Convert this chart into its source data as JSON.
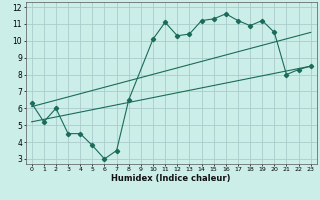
{
  "background_color": "#cceee8",
  "grid_color": "#aacccc",
  "line_color": "#1a6b5a",
  "xlabel": "Humidex (Indice chaleur)",
  "xlim": [
    -0.5,
    23.5
  ],
  "ylim": [
    2.7,
    12.3
  ],
  "xticks": [
    0,
    1,
    2,
    3,
    4,
    5,
    6,
    7,
    8,
    9,
    10,
    11,
    12,
    13,
    14,
    15,
    16,
    17,
    18,
    19,
    20,
    21,
    22,
    23
  ],
  "yticks": [
    3,
    4,
    5,
    6,
    7,
    8,
    9,
    10,
    11,
    12
  ],
  "series1_x": [
    0,
    1,
    2,
    3,
    4,
    5,
    6,
    7,
    8,
    10,
    11,
    12,
    13,
    14,
    15,
    16,
    17,
    18,
    19,
    20,
    21,
    22,
    23
  ],
  "series1_y": [
    6.3,
    5.2,
    6.0,
    4.5,
    4.5,
    3.8,
    3.0,
    3.5,
    6.5,
    10.1,
    11.1,
    10.3,
    10.4,
    11.2,
    11.3,
    11.6,
    11.2,
    10.9,
    11.2,
    10.5,
    8.0,
    8.3,
    8.5
  ],
  "series2_x": [
    0,
    23
  ],
  "series2_y": [
    6.1,
    10.5
  ],
  "series3_x": [
    0,
    23
  ],
  "series3_y": [
    5.2,
    8.5
  ],
  "tick_fontsize_x": 4.5,
  "tick_fontsize_y": 5.5,
  "xlabel_fontsize": 6.0,
  "marker_size": 2.2,
  "line_width": 0.8
}
